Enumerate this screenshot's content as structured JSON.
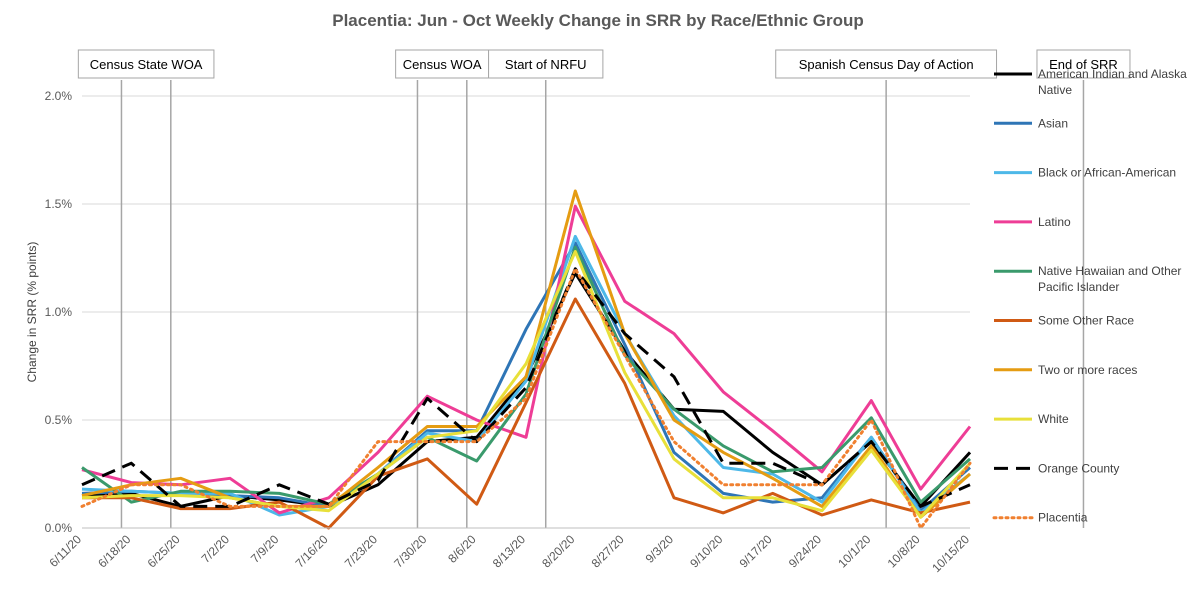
{
  "chart_data": {
    "type": "line",
    "title": "Placentia: Jun - Oct Weekly Change in SRR by Race/Ethnic Group",
    "xlabel": "",
    "ylabel": "Change in SRR (% points)",
    "ylim": [
      0,
      2.0
    ],
    "yticks": [
      "0.0%",
      "0.5%",
      "1.0%",
      "1.5%",
      "2.0%"
    ],
    "ytick_values": [
      0,
      0.5,
      1.0,
      1.5,
      2.0
    ],
    "grid": true,
    "legend_position": "right",
    "categories": [
      "6/11/20",
      "6/18/20",
      "6/25/20",
      "7/2/20",
      "7/9/20",
      "7/16/20",
      "7/23/20",
      "7/30/20",
      "8/6/20",
      "8/13/20",
      "8/20/20",
      "8/27/20",
      "9/3/20",
      "9/10/20",
      "9/17/20",
      "9/24/20",
      "10/1/20",
      "10/8/20",
      "10/15/20"
    ],
    "events": [
      {
        "label": "Census State WOA",
        "x": [
          0.8,
          1.8
        ]
      },
      {
        "label": "Census WOA",
        "x": [
          6.8,
          7.8
        ]
      },
      {
        "label": "Start of NRFU",
        "x": [
          9.4
        ]
      },
      {
        "label": "Spanish Census Day of Action",
        "x": [
          16.3
        ]
      },
      {
        "label": "End of SRR",
        "x": [
          20.3
        ]
      }
    ],
    "series": [
      {
        "name": "American Indian and Alaska Native",
        "color": "#000000",
        "dash": "solid",
        "width": 3,
        "values": [
          0.15,
          0.16,
          0.1,
          0.15,
          0.13,
          0.1,
          0.2,
          0.4,
          0.42,
          0.7,
          1.18,
          0.82,
          0.55,
          0.54,
          0.35,
          0.2,
          0.4,
          0.1,
          0.35
        ]
      },
      {
        "name": "Asian",
        "color": "#2E75B6",
        "dash": "solid",
        "width": 3,
        "values": [
          0.16,
          0.17,
          0.16,
          0.15,
          0.14,
          0.1,
          0.25,
          0.45,
          0.45,
          0.92,
          1.32,
          0.85,
          0.35,
          0.16,
          0.12,
          0.14,
          0.42,
          0.08,
          0.28
        ]
      },
      {
        "name": "Black or African-American",
        "color": "#4DB8E8",
        "dash": "solid",
        "width": 3,
        "values": [
          0.18,
          0.17,
          0.16,
          0.16,
          0.06,
          0.1,
          0.25,
          0.44,
          0.4,
          0.68,
          1.35,
          0.9,
          0.52,
          0.28,
          0.25,
          0.12,
          0.42,
          0.07,
          0.25
        ]
      },
      {
        "name": "Latino",
        "color": "#EE3D96",
        "dash": "solid",
        "width": 3,
        "values": [
          0.27,
          0.21,
          0.2,
          0.23,
          0.07,
          0.14,
          0.35,
          0.61,
          0.5,
          0.42,
          1.49,
          1.05,
          0.9,
          0.63,
          0.45,
          0.26,
          0.59,
          0.18,
          0.47
        ]
      },
      {
        "name": "Native Hawaiian and Other Pacific Islander",
        "color": "#3A9A6C",
        "dash": "solid",
        "width": 3,
        "values": [
          0.28,
          0.12,
          0.17,
          0.17,
          0.16,
          0.11,
          0.25,
          0.42,
          0.31,
          0.62,
          1.3,
          0.8,
          0.55,
          0.38,
          0.26,
          0.28,
          0.51,
          0.12,
          0.32
        ]
      },
      {
        "name": "Some Other Race",
        "color": "#D05A14",
        "dash": "solid",
        "width": 3,
        "values": [
          0.14,
          0.14,
          0.09,
          0.09,
          0.12,
          0.0,
          0.24,
          0.32,
          0.11,
          0.58,
          1.06,
          0.67,
          0.14,
          0.07,
          0.16,
          0.06,
          0.13,
          0.07,
          0.12
        ]
      },
      {
        "name": "Two or more races",
        "color": "#E59C12",
        "dash": "solid",
        "width": 3,
        "values": [
          0.15,
          0.2,
          0.23,
          0.14,
          0.1,
          0.1,
          0.28,
          0.47,
          0.47,
          0.7,
          1.56,
          0.9,
          0.5,
          0.35,
          0.23,
          0.1,
          0.38,
          0.05,
          0.25
        ]
      },
      {
        "name": "White",
        "color": "#E8E03A",
        "dash": "solid",
        "width": 3,
        "values": [
          0.14,
          0.15,
          0.15,
          0.14,
          0.1,
          0.08,
          0.25,
          0.42,
          0.45,
          0.76,
          1.28,
          0.72,
          0.32,
          0.14,
          0.14,
          0.08,
          0.36,
          0.05,
          0.3
        ]
      },
      {
        "name": "Orange County",
        "color": "#000000",
        "dash": "long",
        "width": 3,
        "values": [
          0.2,
          0.3,
          0.1,
          0.1,
          0.2,
          0.11,
          0.22,
          0.6,
          0.4,
          0.65,
          1.2,
          0.9,
          0.7,
          0.3,
          0.3,
          0.2,
          0.4,
          0.1,
          0.2
        ]
      },
      {
        "name": "Placentia",
        "color": "#F08030",
        "dash": "dot",
        "width": 3,
        "values": [
          0.1,
          0.2,
          0.2,
          0.1,
          0.1,
          0.1,
          0.4,
          0.4,
          0.4,
          0.6,
          1.2,
          0.8,
          0.4,
          0.2,
          0.2,
          0.2,
          0.5,
          0.0,
          0.3
        ]
      }
    ]
  }
}
